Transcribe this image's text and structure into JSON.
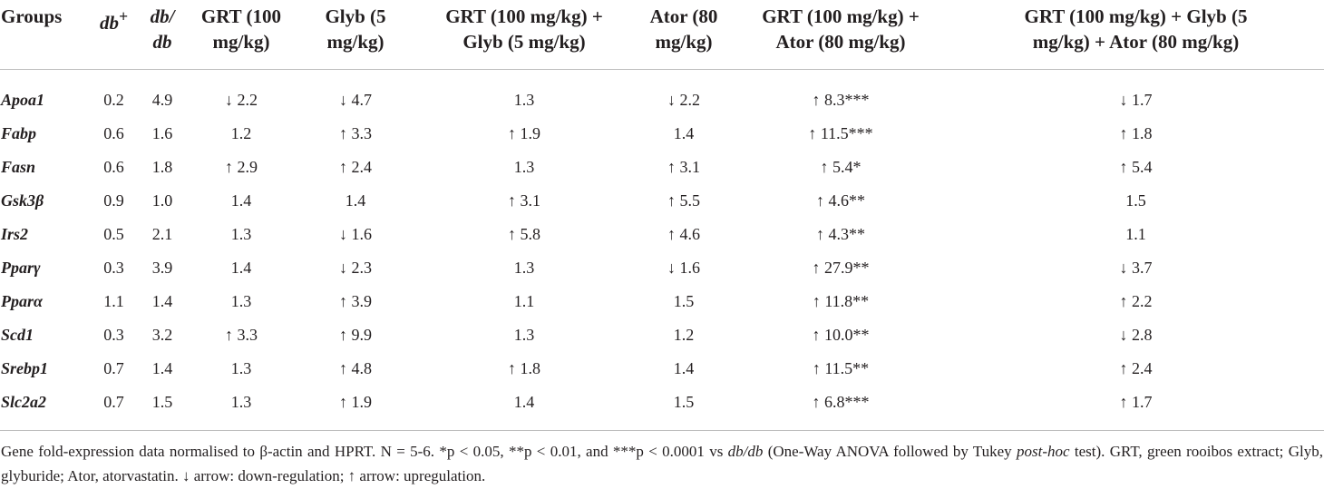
{
  "table": {
    "headers": {
      "groups": "Groups",
      "dbplus_base": "db",
      "dbplus_sup": "+",
      "dbdb_line1": "db/",
      "dbdb_line2": "db",
      "grt_line1": "GRT (100",
      "grt_line2": "mg/kg)",
      "glyb_line1": "Glyb (5",
      "glyb_line2": "mg/kg)",
      "grt_glyb_line1": "GRT (100 mg/kg) +",
      "grt_glyb_line2": "Glyb (5 mg/kg)",
      "ator_line1": "Ator (80",
      "ator_line2": "mg/kg)",
      "grt_ator_line1": "GRT (100 mg/kg) +",
      "grt_ator_line2": "Ator (80 mg/kg)",
      "triple_line1": "GRT (100 mg/kg) + Glyb (5",
      "triple_line2": "mg/kg) + Ator (80 mg/kg)"
    },
    "rows": [
      [
        "Apoa1",
        "0.2",
        "4.9",
        "↓ 2.2",
        "↓ 4.7",
        "1.3",
        "↓ 2.2",
        "↑ 8.3***",
        "↓ 1.7"
      ],
      [
        "Fabp",
        "0.6",
        "1.6",
        "1.2",
        "↑ 3.3",
        "↑ 1.9",
        "1.4",
        "↑ 11.5***",
        "↑ 1.8"
      ],
      [
        "Fasn",
        "0.6",
        "1.8",
        "↑ 2.9",
        "↑ 2.4",
        "1.3",
        "↑ 3.1",
        "↑ 5.4*",
        "↑ 5.4"
      ],
      [
        "Gsk3β",
        "0.9",
        "1.0",
        "1.4",
        "1.4",
        "↑ 3.1",
        "↑ 5.5",
        "↑ 4.6**",
        "1.5"
      ],
      [
        "Irs2",
        "0.5",
        "2.1",
        "1.3",
        "↓ 1.6",
        "↑ 5.8",
        "↑ 4.6",
        "↑ 4.3**",
        "1.1"
      ],
      [
        "Pparγ",
        "0.3",
        "3.9",
        "1.4",
        "↓ 2.3",
        "1.3",
        "↓ 1.6",
        "↑ 27.9**",
        "↓ 3.7"
      ],
      [
        "Pparα",
        "1.1",
        "1.4",
        "1.3",
        "↑ 3.9",
        "1.1",
        "1.5",
        "↑ 11.8**",
        "↑ 2.2"
      ],
      [
        "Scd1",
        "0.3",
        "3.2",
        "↑ 3.3",
        "↑ 9.9",
        "1.3",
        "1.2",
        "↑ 10.0**",
        "↓ 2.8"
      ],
      [
        "Srebp1",
        "0.7",
        "1.4",
        "1.3",
        "↑ 4.8",
        "↑ 1.8",
        "1.4",
        "↑ 11.5**",
        "↑ 2.4"
      ],
      [
        "Slc2a2",
        "0.7",
        "1.5",
        "1.3",
        "↑ 1.9",
        "1.4",
        "1.5",
        "↑ 6.8***",
        "↑ 1.7"
      ]
    ]
  },
  "footnote": {
    "part1": "Gene fold-expression data normalised to β-actin and HPRT. N = 5-6. *p < 0.05, **p < 0.01, and ***p < 0.0001 vs ",
    "dbdb": "db/db",
    "part2": " (One-Way ANOVA followed by Tukey ",
    "posthoc": "post-hoc",
    "part3": " test). GRT, green rooibos extract; Glyb, glyburide; Ator, atorvastatin. ↓ arrow: down-regulation; ↑ arrow: upregulation."
  }
}
